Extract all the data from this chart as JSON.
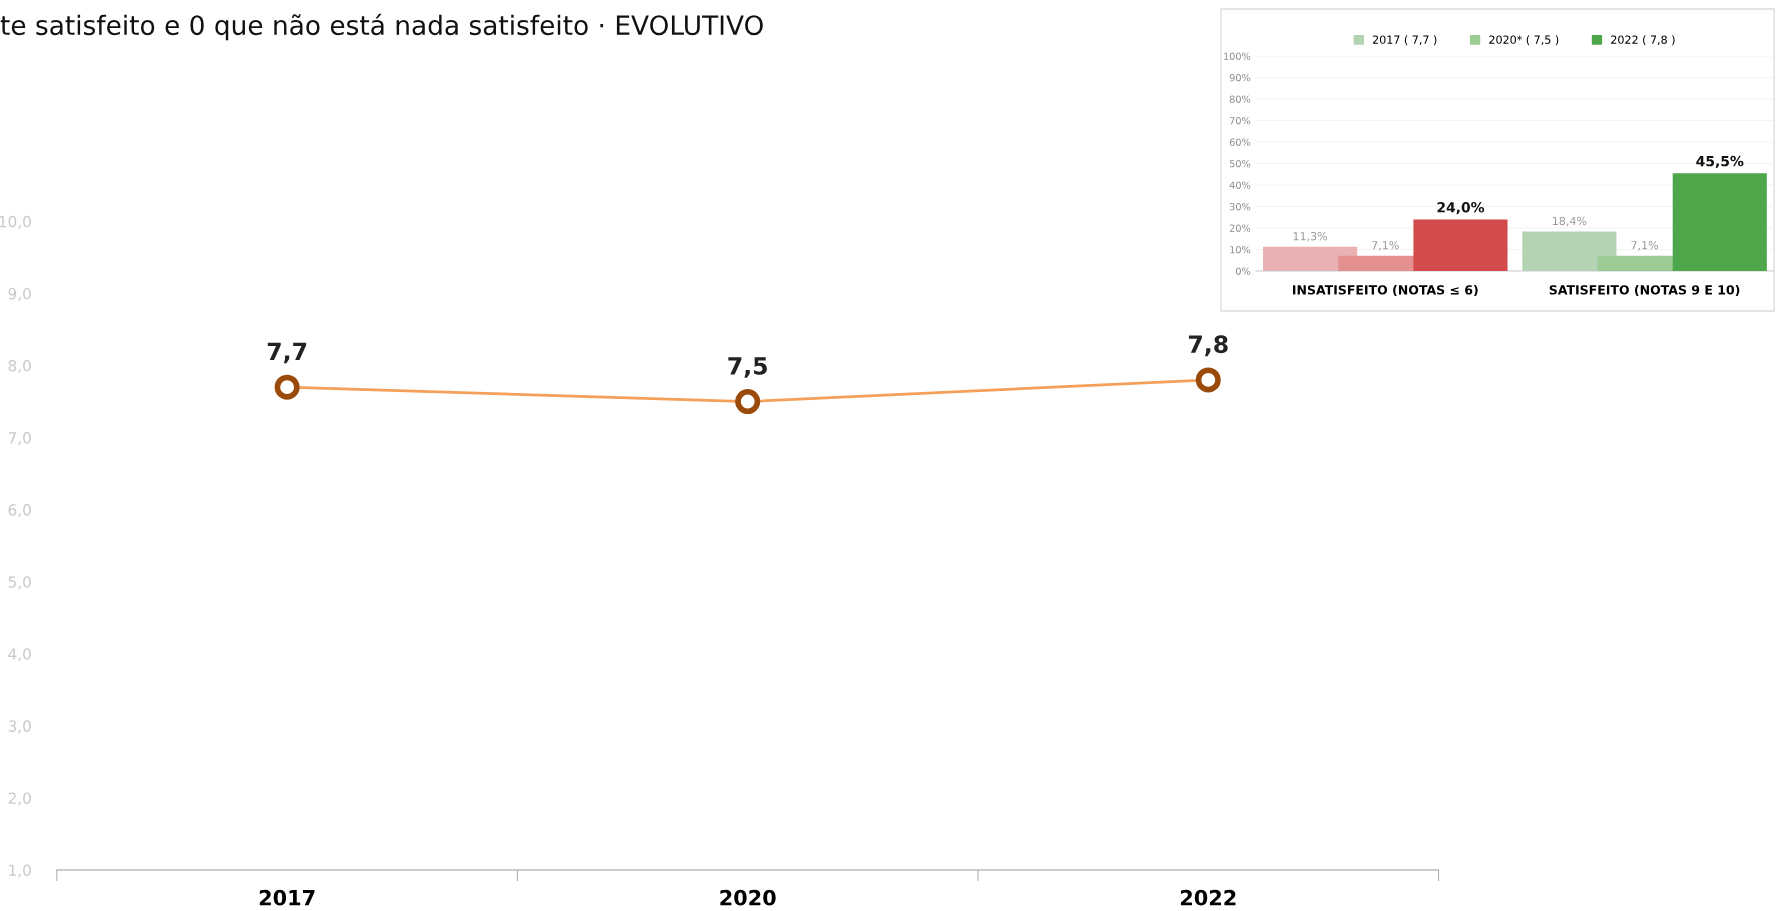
{
  "chart_data": [
    {
      "type": "line",
      "title": "te satisfeito e 0 que não está nada satisfeito · EVOLUTIVO",
      "categories": [
        "2017",
        "2020",
        "2022"
      ],
      "series": [
        {
          "color": "#f5a05a",
          "values": [
            7.7,
            7.5,
            7.8
          ],
          "value_labels": [
            "7,7",
            "7,5",
            "7,8"
          ]
        }
      ],
      "ylim": [
        1.0,
        10.0
      ],
      "yticks": [
        {
          "value": 1,
          "label": "1,0"
        },
        {
          "value": 2,
          "label": "2,0"
        },
        {
          "value": 3,
          "label": "3,0"
        },
        {
          "value": 4,
          "label": "4,0"
        },
        {
          "value": 5,
          "label": "5,0"
        },
        {
          "value": 6,
          "label": "6,0"
        },
        {
          "value": 7,
          "label": "7,0"
        },
        {
          "value": 8,
          "label": "8,0"
        },
        {
          "value": 9,
          "label": "9,0"
        },
        {
          "value": 10,
          "label": "10,0"
        }
      ],
      "marker": "circle",
      "line_style": "solid",
      "grid": false
    },
    {
      "type": "bar",
      "categories": [
        "INSATISFEITO (NOTAS ≤ 6)",
        "SATISFEITO (NOTAS 9 E 10)"
      ],
      "series": [
        {
          "name": "2017 ( 7,7 )",
          "color": "#b3d3b3",
          "colors": [
            "#e9b1b1",
            "#b3d3b3"
          ],
          "values": [
            11.3,
            18.4
          ],
          "value_labels": [
            "11,3%",
            "18,4%"
          ]
        },
        {
          "name": "2020* ( 7,5 )",
          "color": "#9ccc94",
          "colors": [
            "#e49090",
            "#9ccc94"
          ],
          "values": [
            7.1,
            7.1
          ],
          "value_labels": [
            "7,1%",
            "7,1%"
          ]
        },
        {
          "name": "2022 ( 7,8 )",
          "color": "#4ea64a",
          "colors": [
            "#d44b4b",
            "#4ea64a"
          ],
          "values": [
            24.0,
            45.5
          ],
          "value_labels": [
            "24,0%",
            "45,5%"
          ]
        }
      ],
      "ylim": [
        0,
        100
      ],
      "yticks": [
        {
          "value": 0,
          "label": "0%"
        },
        {
          "value": 10,
          "label": "10%"
        },
        {
          "value": 20,
          "label": "20%"
        },
        {
          "value": 30,
          "label": "30%"
        },
        {
          "value": 40,
          "label": "40%"
        },
        {
          "value": 50,
          "label": "50%"
        },
        {
          "value": 60,
          "label": "60%"
        },
        {
          "value": 70,
          "label": "70%"
        },
        {
          "value": 80,
          "label": "80%"
        },
        {
          "value": 90,
          "label": "90%"
        },
        {
          "value": 100,
          "label": "100%"
        }
      ],
      "grid": "y",
      "legend": "top"
    }
  ]
}
